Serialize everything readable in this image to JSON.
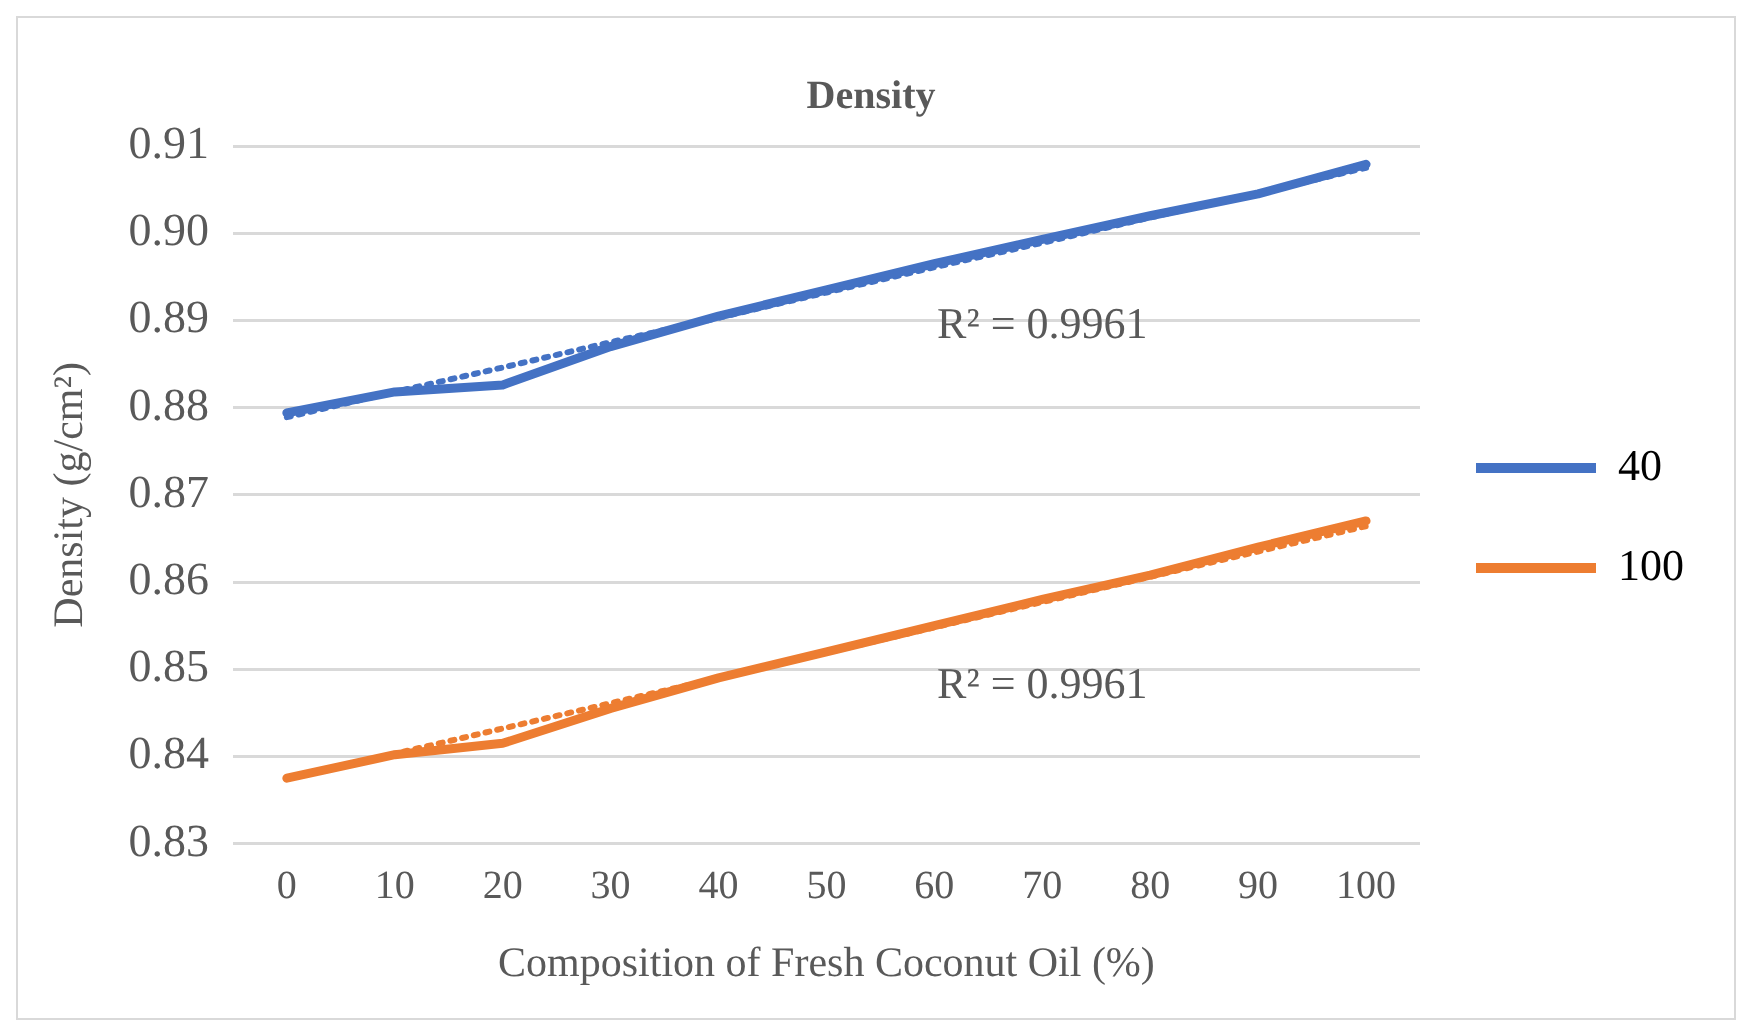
{
  "chart_data": {
    "type": "line",
    "title": "Density",
    "xlabel": "Composition of Fresh Coconut Oil (%)",
    "ylabel": "Density (g/cm²)",
    "categories": [
      "0",
      "10",
      "20",
      "30",
      "40",
      "50",
      "60",
      "70",
      "80",
      "90",
      "100"
    ],
    "series": [
      {
        "name": "40",
        "color": "#4472c4",
        "values": [
          0.8794,
          0.8818,
          0.8826,
          0.887,
          0.8905,
          0.8935,
          0.8965,
          0.8993,
          0.902,
          0.9045,
          0.9079
        ]
      },
      {
        "name": "100",
        "color": "#ed7d31",
        "values": [
          0.8375,
          0.8402,
          0.8415,
          0.8455,
          0.849,
          0.852,
          0.855,
          0.858,
          0.8608,
          0.864,
          0.867
        ]
      },
      {
        "type": "line",
        "line_style": "dotted",
        "color": "#4472c4",
        "values": [
          0.8789,
          0.8818,
          0.8846,
          0.8875,
          0.8903,
          0.8932,
          0.8961,
          0.8989,
          0.9018,
          0.9046,
          0.9075
        ]
      },
      {
        "type": "line",
        "line_style": "dotted",
        "color": "#ed7d31",
        "values": [
          0.8374,
          0.8403,
          0.8432,
          0.8461,
          0.849,
          0.8519,
          0.8548,
          0.8577,
          0.8606,
          0.8635,
          0.8664
        ]
      }
    ],
    "ylim": [
      0.83,
      0.91
    ],
    "yticks": [
      0.83,
      0.84,
      0.85,
      0.86,
      0.87,
      0.88,
      0.89,
      {
        "value": 0.9,
        "label": "0.90"
      },
      0.91
    ],
    "grid": "y",
    "legend": "right",
    "marker": "none",
    "line_style": "solid",
    "annotations": [
      "R² = 0.9961",
      "R² = 0.9961"
    ]
  }
}
